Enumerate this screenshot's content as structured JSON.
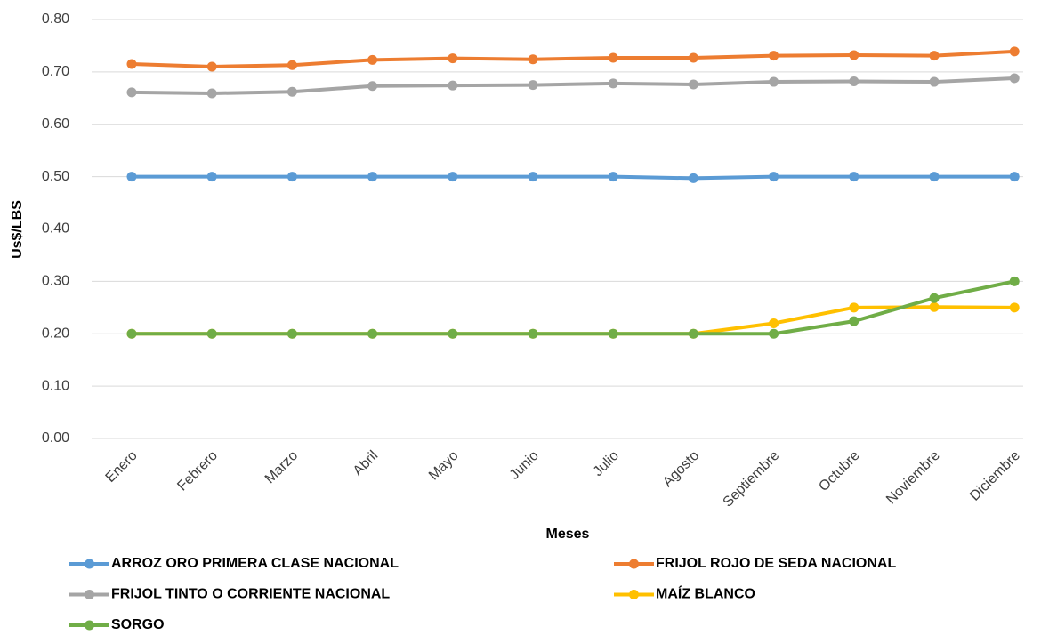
{
  "chart_data": {
    "type": "line",
    "x_label": "Meses",
    "y_label": "Us$/LBS",
    "categories": [
      "Enero",
      "Febrero",
      "Marzo",
      "Abril",
      "Mayo",
      "Junio",
      "Julio",
      "Agosto",
      "Septiembre",
      "Octubre",
      "Noviembre",
      "Diciembre"
    ],
    "series": [
      {
        "name": "ARROZ ORO PRIMERA CLASE NACIONAL",
        "color": "#5b9bd5",
        "values": [
          0.5,
          0.5,
          0.5,
          0.5,
          0.5,
          0.5,
          0.5,
          0.497,
          0.5,
          0.5,
          0.5,
          0.5
        ]
      },
      {
        "name": "FRIJOL  ROJO DE SEDA NACIONAL",
        "color": "#ed7d31",
        "values": [
          0.715,
          0.71,
          0.713,
          0.723,
          0.726,
          0.724,
          0.727,
          0.727,
          0.731,
          0.732,
          0.731,
          0.739
        ]
      },
      {
        "name": "FRIJOL  TINTO O CORRIENTE NACIONAL",
        "color": "#a5a5a5",
        "values": [
          0.661,
          0.659,
          0.662,
          0.673,
          0.674,
          0.675,
          0.678,
          0.676,
          0.681,
          0.682,
          0.681,
          0.688
        ]
      },
      {
        "name": "MAÍZ BLANCO",
        "color": "#ffc000",
        "values": [
          0.2,
          0.2,
          0.2,
          0.2,
          0.2,
          0.2,
          0.2,
          0.2,
          0.22,
          0.25,
          0.251,
          0.25
        ]
      },
      {
        "name": "SORGO",
        "color": "#70ad47",
        "values": [
          0.2,
          0.2,
          0.2,
          0.2,
          0.2,
          0.2,
          0.2,
          0.2,
          0.2,
          0.224,
          0.268,
          0.3
        ]
      }
    ],
    "ylim": [
      0,
      0.8
    ],
    "yticks": [
      {
        "value": 0,
        "label": "0.00"
      },
      {
        "value": 0.1,
        "label": "0.10"
      },
      {
        "value": 0.2,
        "label": "0.20"
      },
      {
        "value": 0.3,
        "label": "0.30"
      },
      {
        "value": 0.4,
        "label": "0.40"
      },
      {
        "value": 0.5,
        "label": "0.50"
      },
      {
        "value": 0.6,
        "label": "0.60"
      },
      {
        "value": 0.7,
        "label": "0.70"
      },
      {
        "value": 0.8,
        "label": "0.80"
      }
    ],
    "grid": true,
    "legend": "bottom"
  }
}
